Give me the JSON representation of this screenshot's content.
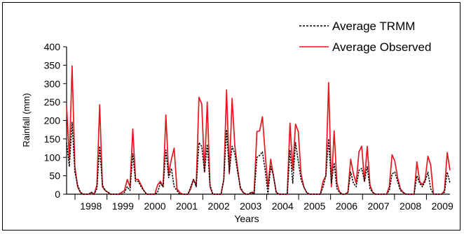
{
  "chart_data": {
    "type": "line",
    "title": "",
    "xlabel": "Years",
    "ylabel": "Rainfall (mm)",
    "ylim": [
      0,
      400
    ],
    "yticks": [
      0,
      50,
      100,
      150,
      200,
      250,
      300,
      350,
      400
    ],
    "xticks": [
      "1998",
      "1999",
      "2000",
      "2001",
      "2002",
      "2003",
      "2004",
      "2005",
      "2006",
      "2007",
      "2008",
      "2009"
    ],
    "x_start": "1998-01",
    "x_end": "2009-12",
    "legend_position": "top-right",
    "grid": false,
    "series": [
      {
        "name": "Average TRMM",
        "color": "#000000",
        "style": "dashed",
        "values": [
          140,
          75,
          195,
          60,
          25,
          5,
          0,
          0,
          0,
          5,
          0,
          15,
          130,
          25,
          10,
          5,
          0,
          0,
          0,
          0,
          0,
          5,
          20,
          10,
          110,
          35,
          35,
          20,
          10,
          0,
          0,
          0,
          0,
          5,
          30,
          20,
          120,
          45,
          70,
          20,
          10,
          0,
          0,
          0,
          0,
          20,
          40,
          20,
          140,
          130,
          60,
          135,
          25,
          0,
          0,
          0,
          0,
          40,
          175,
          60,
          130,
          110,
          60,
          20,
          5,
          0,
          0,
          5,
          0,
          100,
          105,
          115,
          65,
          0,
          75,
          50,
          5,
          0,
          0,
          0,
          0,
          120,
          30,
          140,
          90,
          40,
          20,
          5,
          0,
          0,
          0,
          0,
          0,
          20,
          50,
          150,
          30,
          85,
          15,
          5,
          0,
          0,
          5,
          60,
          30,
          20,
          65,
          70,
          35,
          75,
          15,
          5,
          0,
          0,
          0,
          0,
          0,
          10,
          55,
          60,
          35,
          10,
          5,
          0,
          0,
          0,
          0,
          50,
          30,
          20,
          35,
          60,
          15,
          0,
          0,
          0,
          0,
          5,
          60,
          30
        ]
      },
      {
        "name": "Average Observed",
        "color": "#e8161e",
        "style": "solid",
        "values": [
          240,
          95,
          348,
          75,
          20,
          5,
          0,
          0,
          0,
          5,
          0,
          25,
          243,
          20,
          10,
          5,
          0,
          0,
          0,
          0,
          5,
          10,
          40,
          20,
          177,
          40,
          40,
          25,
          10,
          0,
          0,
          0,
          0,
          25,
          35,
          20,
          215,
          55,
          95,
          125,
          15,
          5,
          0,
          0,
          0,
          15,
          40,
          25,
          263,
          245,
          60,
          250,
          20,
          0,
          0,
          0,
          0,
          40,
          283,
          55,
          260,
          130,
          70,
          15,
          5,
          0,
          0,
          5,
          5,
          170,
          172,
          210,
          110,
          20,
          95,
          50,
          5,
          0,
          0,
          0,
          0,
          193,
          65,
          190,
          170,
          55,
          20,
          5,
          0,
          0,
          0,
          0,
          0,
          35,
          50,
          303,
          20,
          172,
          30,
          5,
          0,
          0,
          5,
          95,
          55,
          30,
          115,
          130,
          35,
          130,
          25,
          5,
          0,
          0,
          0,
          0,
          0,
          20,
          107,
          90,
          45,
          15,
          5,
          0,
          0,
          0,
          0,
          88,
          35,
          25,
          40,
          103,
          80,
          0,
          0,
          0,
          0,
          10,
          113,
          65
        ]
      }
    ]
  }
}
